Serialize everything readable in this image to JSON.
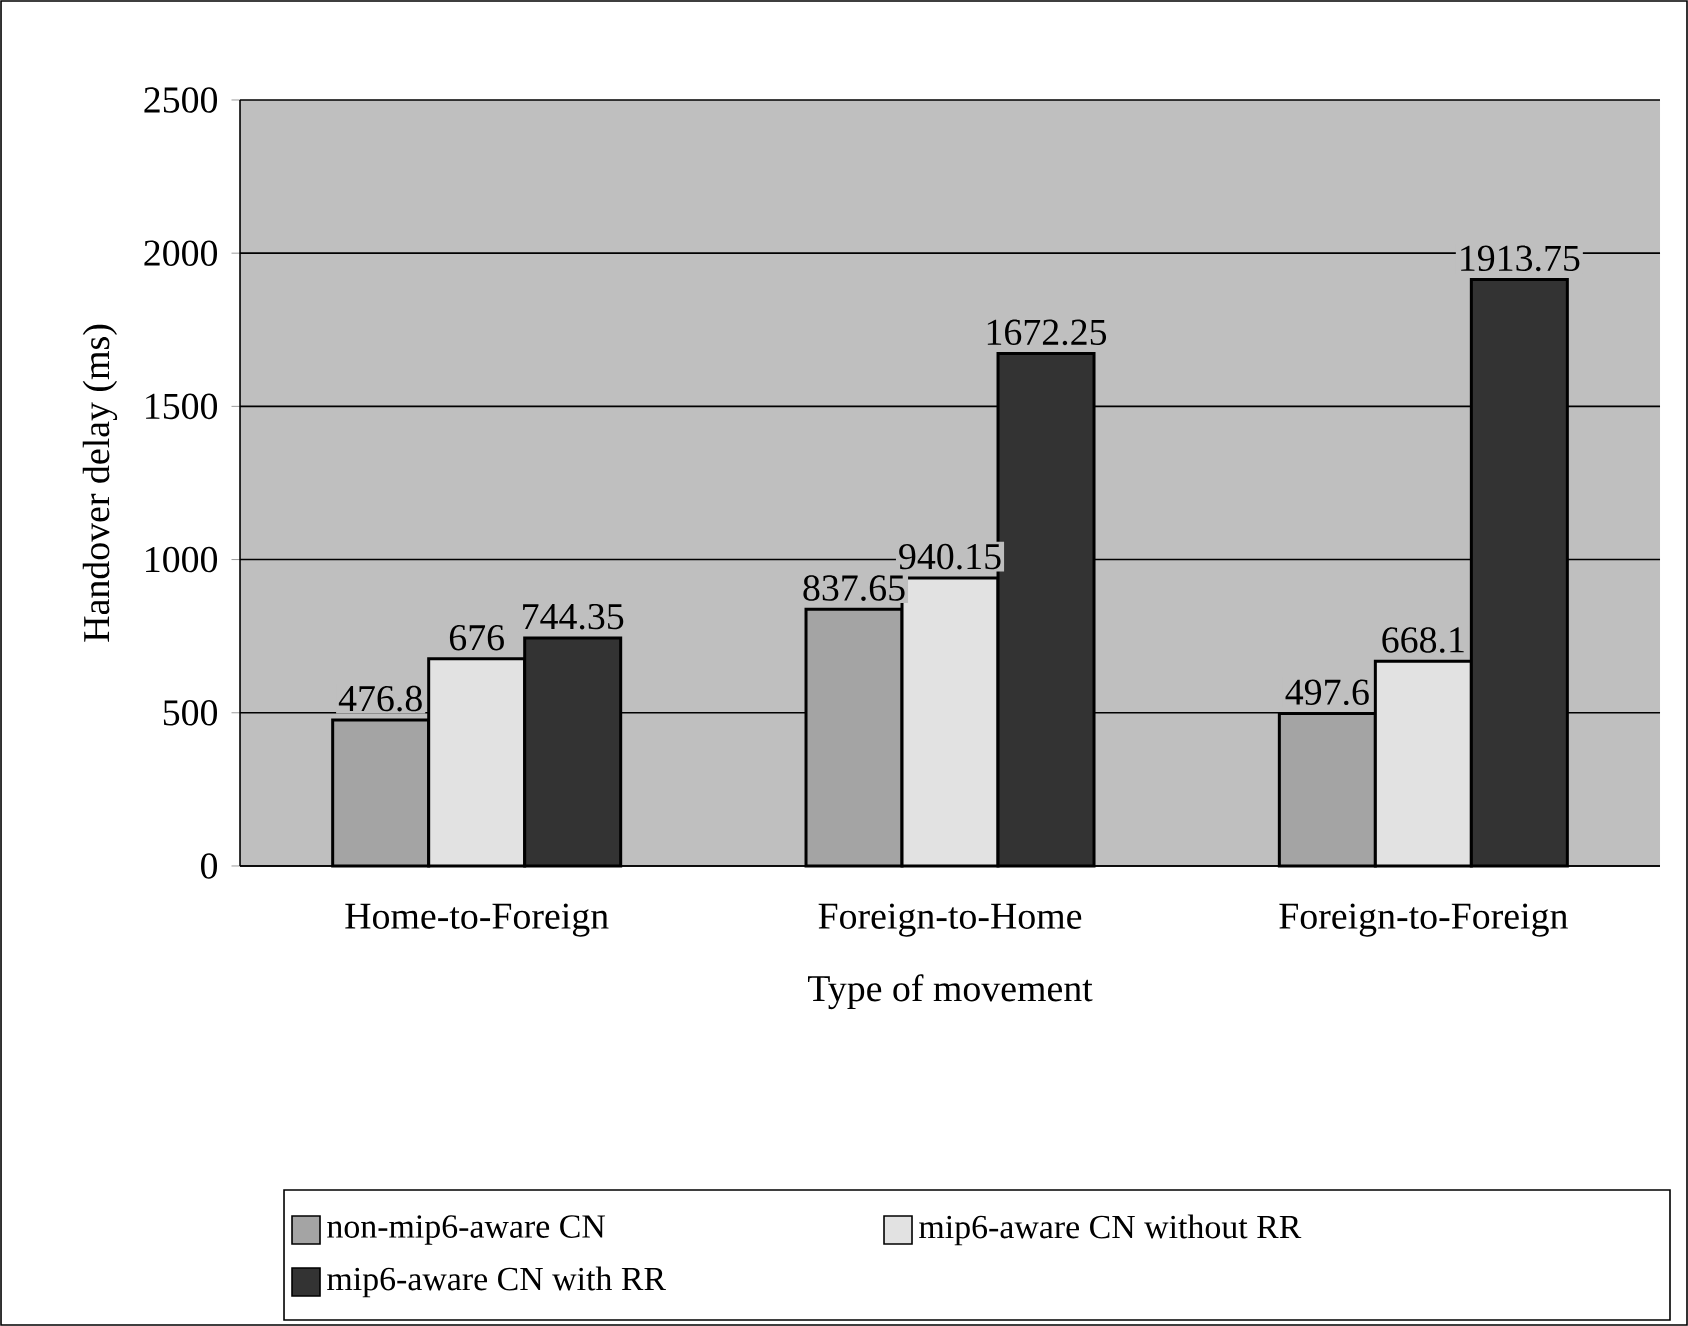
{
  "chart_data": {
    "type": "bar",
    "xlabel": "Type of movement",
    "ylabel": "Handover delay (ms)",
    "categories": [
      "Home-to-Foreign",
      "Foreign-to-Home",
      "Foreign-to-Foreign"
    ],
    "series": [
      {
        "name": "non-mip6-aware CN",
        "color": "#a4a4a4",
        "values": [
          476.8,
          837.65,
          497.6
        ]
      },
      {
        "name": "mip6-aware CN without RR",
        "color": "#e2e2e2",
        "values": [
          676,
          940.15,
          668.1
        ]
      },
      {
        "name": "mip6-aware CN with RR",
        "color": "#333333",
        "values": [
          744.35,
          1672.25,
          1913.75
        ]
      }
    ],
    "ylim": [
      0,
      2500
    ],
    "yticks": [
      0,
      500,
      1000,
      1500,
      2000,
      2500
    ],
    "grid": "y",
    "legend": "bottom",
    "data_labels": true
  }
}
